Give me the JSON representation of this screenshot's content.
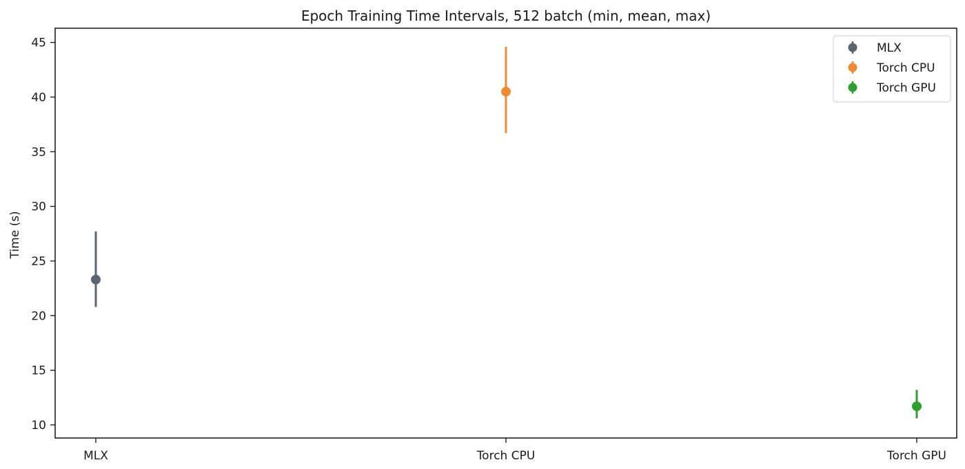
{
  "chart_data": {
    "type": "scatter",
    "title": "Epoch Training Time Intervals, 512 batch (min, mean, max)",
    "xlabel": "",
    "ylabel": "Time (s)",
    "categories": [
      "MLX",
      "Torch CPU",
      "Torch GPU"
    ],
    "ylim": [
      8.8,
      46.3
    ],
    "yticks": [
      10,
      15,
      20,
      25,
      30,
      35,
      40,
      45
    ],
    "grid": false,
    "legend_position": "top-right",
    "series": [
      {
        "name": "MLX",
        "color": "#5a6474",
        "category": "MLX",
        "min": 20.8,
        "mean": 23.3,
        "max": 27.7
      },
      {
        "name": "Torch CPU",
        "color": "#f08a32",
        "category": "Torch CPU",
        "min": 36.7,
        "mean": 40.5,
        "max": 44.6
      },
      {
        "name": "Torch GPU",
        "color": "#2ca02c",
        "category": "Torch GPU",
        "min": 10.6,
        "mean": 11.7,
        "max": 13.2
      }
    ]
  }
}
